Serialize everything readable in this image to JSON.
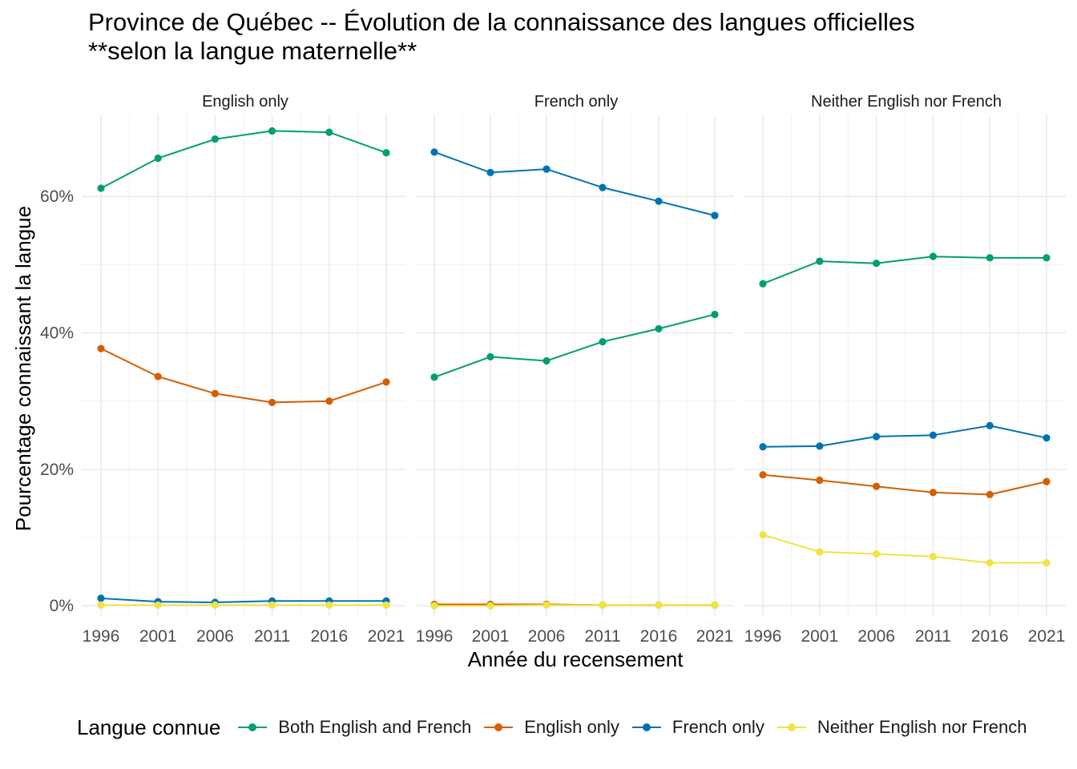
{
  "title_line1": "Province de Québec -- Évolution de la connaissance des langues officielles",
  "title_line2": "**selon la langue maternelle**",
  "chart_data": {
    "type": "line",
    "title": "Province de Québec -- Évolution de la connaissance des langues officielles **selon la langue maternelle**",
    "xlabel": "Année du recensement",
    "ylabel": "Pourcentage connaissant la langue",
    "x": [
      1996,
      2001,
      2006,
      2011,
      2016,
      2021
    ],
    "x_tick_labels": [
      "1996",
      "2001",
      "2006",
      "2011",
      "2016",
      "2021"
    ],
    "y_ticks": [
      0,
      20,
      40,
      60
    ],
    "y_tick_labels": [
      "0%",
      "20%",
      "40%",
      "60%"
    ],
    "ylim": [
      -1.5,
      72
    ],
    "grid": true,
    "legend_title": "Langue connue",
    "legend_position": "bottom",
    "series_colors": {
      "Both English and French": "#009E73",
      "English only": "#D55E00",
      "French only": "#0072B2",
      "Neither English nor French": "#F0E442"
    },
    "facets": [
      {
        "label": "English only",
        "series": [
          {
            "name": "Both English and French",
            "values": [
              61.2,
              65.6,
              68.4,
              69.6,
              69.4,
              66.4
            ]
          },
          {
            "name": "English only",
            "values": [
              37.7,
              33.6,
              31.1,
              29.8,
              30.0,
              32.8
            ]
          },
          {
            "name": "French only",
            "values": [
              1.1,
              0.6,
              0.5,
              0.7,
              0.7,
              0.7
            ]
          },
          {
            "name": "Neither English nor French",
            "values": [
              0.1,
              0.1,
              0.1,
              0.1,
              0.1,
              0.1
            ]
          }
        ]
      },
      {
        "label": "French only",
        "series": [
          {
            "name": "Both English and French",
            "values": [
              33.5,
              36.5,
              35.9,
              38.7,
              40.6,
              42.7
            ]
          },
          {
            "name": "English only",
            "values": [
              0.2,
              0.2,
              0.2,
              0.1,
              0.1,
              0.1
            ]
          },
          {
            "name": "French only",
            "values": [
              66.5,
              63.5,
              64.0,
              61.3,
              59.3,
              57.2
            ]
          },
          {
            "name": "Neither English nor French",
            "values": [
              0.0,
              0.0,
              0.1,
              0.1,
              0.1,
              0.1
            ]
          }
        ]
      },
      {
        "label": "Neither English nor French",
        "series": [
          {
            "name": "Both English and French",
            "values": [
              47.2,
              50.5,
              50.2,
              51.2,
              51.0,
              51.0
            ]
          },
          {
            "name": "English only",
            "values": [
              19.2,
              18.4,
              17.5,
              16.6,
              16.3,
              18.2
            ]
          },
          {
            "name": "French only",
            "values": [
              23.3,
              23.4,
              24.8,
              25.0,
              26.4,
              24.6
            ]
          },
          {
            "name": "Neither English nor French",
            "values": [
              10.4,
              7.9,
              7.6,
              7.2,
              6.3,
              6.3
            ]
          }
        ]
      }
    ]
  }
}
